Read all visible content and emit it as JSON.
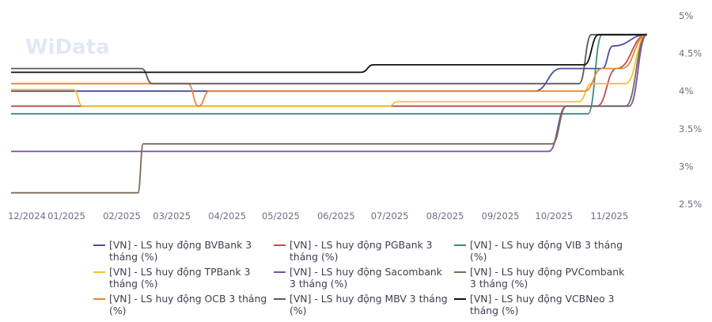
{
  "watermark": "WiData",
  "chart_data": {
    "type": "line",
    "title": "",
    "xlabel": "",
    "ylabel": "",
    "x_range": [
      "2024-12-01",
      "2025-12-01"
    ],
    "x_ticks": [
      {
        "date": "2024-12-01",
        "label": "12/2024"
      },
      {
        "date": "2025-01-01",
        "label": "01/2025"
      },
      {
        "date": "2025-02-01",
        "label": "02/2025"
      },
      {
        "date": "2025-03-01",
        "label": "03/2025"
      },
      {
        "date": "2025-04-01",
        "label": "04/2025"
      },
      {
        "date": "2025-05-01",
        "label": "05/2025"
      },
      {
        "date": "2025-06-01",
        "label": "06/2025"
      },
      {
        "date": "2025-07-01",
        "label": "07/2025"
      },
      {
        "date": "2025-08-01",
        "label": "08/2025"
      },
      {
        "date": "2025-09-01",
        "label": "09/2025"
      },
      {
        "date": "2025-10-01",
        "label": "10/2025"
      },
      {
        "date": "2025-11-01",
        "label": "11/2025"
      }
    ],
    "ylim": [
      2.5,
      5.0
    ],
    "y_ticks": [
      {
        "value": 2.5,
        "label": "2.5%"
      },
      {
        "value": 3.0,
        "label": "3%"
      },
      {
        "value": 3.5,
        "label": "3.5%"
      },
      {
        "value": 4.0,
        "label": "4%"
      },
      {
        "value": 4.5,
        "label": "4.5%"
      },
      {
        "value": 5.0,
        "label": "5%"
      }
    ],
    "y_axis_position": "right",
    "grid": false,
    "legend_position": "bottom",
    "series": [
      {
        "name": "[VN] - LS huy động BVBank 3 tháng (%)",
        "color": "#4a4f9c",
        "points": [
          [
            "2024-12-01",
            4.0
          ],
          [
            "2025-09-20",
            4.0
          ],
          [
            "2025-10-05",
            4.3
          ],
          [
            "2025-10-28",
            4.3
          ],
          [
            "2025-11-03",
            4.6
          ],
          [
            "2025-11-22",
            4.75
          ]
        ]
      },
      {
        "name": "[VN] - LS huy động PGBank 3 tháng (%)",
        "color": "#c0504d",
        "points": [
          [
            "2024-12-01",
            3.8
          ],
          [
            "2025-10-25",
            3.8
          ],
          [
            "2025-11-05",
            4.3
          ],
          [
            "2025-11-22",
            4.75
          ]
        ]
      },
      {
        "name": "[VN] - LS huy động VIB 3 tháng (%)",
        "color": "#3e8a7e",
        "points": [
          [
            "2024-12-01",
            3.7
          ],
          [
            "2025-10-20",
            3.7
          ],
          [
            "2025-10-28",
            4.75
          ],
          [
            "2025-11-22",
            4.75
          ]
        ]
      },
      {
        "name": "[VN] - LS huy động TPBank 3 tháng (%)",
        "color": "#f1c232",
        "points": [
          [
            "2024-12-01",
            4.02
          ],
          [
            "2025-01-05",
            4.02
          ],
          [
            "2025-01-10",
            3.8
          ],
          [
            "2025-07-01",
            3.8
          ],
          [
            "2025-07-05",
            3.86
          ],
          [
            "2025-10-15",
            3.86
          ],
          [
            "2025-10-22",
            4.1
          ],
          [
            "2025-11-10",
            4.1
          ],
          [
            "2025-11-22",
            4.75
          ]
        ]
      },
      {
        "name": "[VN] - LS huy động Sacombank 3 tháng (%)",
        "color": "#7b4fa0",
        "points": [
          [
            "2024-12-01",
            3.2
          ],
          [
            "2025-09-28",
            3.2
          ],
          [
            "2025-10-08",
            3.8
          ],
          [
            "2025-11-12",
            3.8
          ],
          [
            "2025-11-22",
            4.75
          ]
        ]
      },
      {
        "name": "[VN] - LS huy động PVCombank 3 tháng (%)",
        "color": "#7a6a5a",
        "points": [
          [
            "2024-12-01",
            2.65
          ],
          [
            "2025-02-10",
            2.65
          ],
          [
            "2025-02-13",
            3.3
          ],
          [
            "2025-09-30",
            3.3
          ],
          [
            "2025-10-08",
            3.8
          ],
          [
            "2025-11-10",
            3.8
          ],
          [
            "2025-11-22",
            4.75
          ]
        ]
      },
      {
        "name": "[VN] - LS huy động OCB 3 tháng (%)",
        "color": "#e6883a",
        "points": [
          [
            "2024-12-01",
            4.1
          ],
          [
            "2025-03-10",
            4.1
          ],
          [
            "2025-03-16",
            3.8
          ],
          [
            "2025-03-22",
            4.0
          ],
          [
            "2025-10-18",
            4.0
          ],
          [
            "2025-10-28",
            4.3
          ],
          [
            "2025-11-08",
            4.3
          ],
          [
            "2025-11-22",
            4.75
          ]
        ]
      },
      {
        "name": "[VN] - LS huy động MBV 3 tháng (%)",
        "color": "#5a5a5a",
        "points": [
          [
            "2024-12-01",
            4.3
          ],
          [
            "2025-02-12",
            4.3
          ],
          [
            "2025-02-18",
            4.1
          ],
          [
            "2025-10-15",
            4.1
          ],
          [
            "2025-10-22",
            4.75
          ],
          [
            "2025-11-22",
            4.75
          ]
        ]
      },
      {
        "name": "[VN] - LS huy động VCBNeo 3 tháng (%)",
        "color": "#111111",
        "points": [
          [
            "2024-12-01",
            4.25
          ],
          [
            "2025-06-15",
            4.25
          ],
          [
            "2025-06-22",
            4.35
          ],
          [
            "2025-10-18",
            4.35
          ],
          [
            "2025-10-26",
            4.75
          ],
          [
            "2025-11-22",
            4.75
          ]
        ]
      }
    ]
  }
}
